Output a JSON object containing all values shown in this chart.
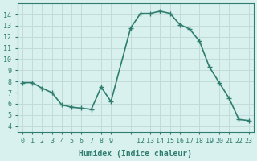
{
  "x": [
    0,
    1,
    2,
    3,
    4,
    5,
    6,
    7,
    8,
    9,
    11,
    12,
    13,
    14,
    15,
    16,
    17,
    18,
    19,
    20,
    21,
    22,
    23
  ],
  "y": [
    7.9,
    7.9,
    7.4,
    7.0,
    5.9,
    5.7,
    5.6,
    5.5,
    7.5,
    6.2,
    12.8,
    14.1,
    14.1,
    14.3,
    14.1,
    13.1,
    12.7,
    11.6,
    9.3,
    7.9,
    6.5,
    4.6,
    4.5
  ],
  "xticks": [
    0,
    1,
    2,
    3,
    4,
    5,
    6,
    7,
    8,
    9,
    11,
    12,
    13,
    14,
    15,
    16,
    17,
    18,
    19,
    20,
    21,
    22,
    23
  ],
  "xlabels": [
    "0",
    "1",
    "2",
    "3",
    "4",
    "5",
    "6",
    "7",
    "8",
    "9",
    "",
    "12",
    "13",
    "14",
    "15",
    "16",
    "17",
    "18",
    "19",
    "20",
    "21",
    "22",
    "23"
  ],
  "yticks": [
    4,
    5,
    6,
    7,
    8,
    9,
    10,
    11,
    12,
    13,
    14
  ],
  "ylim": [
    3.5,
    15.0
  ],
  "xlim": [
    -0.5,
    23.5
  ],
  "line_color": "#2e7d6e",
  "bg_color": "#d8f0ee",
  "grid_color": "#c0dbd8",
  "xlabel": "Humidex (Indice chaleur)",
  "markersize": 5,
  "linewidth": 1.2
}
